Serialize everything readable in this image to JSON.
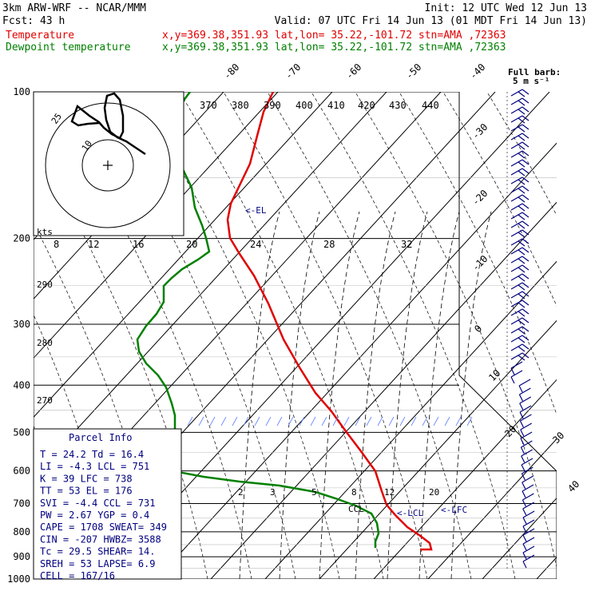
{
  "header": {
    "model": "3km ARW-WRF -- NCAR/MMM",
    "init": "Init: 12 UTC Wed 12 Jun 13",
    "fcst": "Fcst:    43 h",
    "valid": "Valid: 07 UTC Fri 14 Jun 13 (01 MDT Fri 14 Jun 13)",
    "temp_label": "Temperature",
    "dew_label": "Dewpoint temperature",
    "loc_info": "x,y=369.38,351.93   lat,lon= 35.22,-101.72  stn=AMA ,72363"
  },
  "chart_data": {
    "type": "line",
    "title": "",
    "y_ticks": [
      "100",
      "200",
      "300",
      "400",
      "500",
      "600",
      "700",
      "800",
      "900",
      "1000"
    ],
    "isotherm_labels": [
      "-80",
      "-70",
      "-60",
      "-50",
      "-40",
      "-30",
      "-20",
      "-10",
      "0",
      "10",
      "20",
      "30",
      "40"
    ],
    "theta_labels": [
      "370",
      "380",
      "390",
      "400",
      "410",
      "420",
      "430",
      "440"
    ],
    "mixing_ratio_labels_upper": [
      "8",
      "12",
      "16",
      "20",
      "24",
      "28",
      "32"
    ],
    "mixing_ratio_labels_lower": [
      "2",
      "3",
      "5",
      "8",
      "12",
      "20"
    ],
    "left_theta_labels": [
      "290",
      "280",
      "270"
    ],
    "kts_label": "kts",
    "full_barb_label": "Full barb:",
    "full_barb_value": "5 m s⁻¹",
    "hodograph_rings": [
      "25",
      "10"
    ],
    "series": [
      {
        "name": "Temperature",
        "color": "#e00000"
      },
      {
        "name": "Dewpoint temperature",
        "color": "#008000"
      }
    ],
    "annotations": [
      "<-EL",
      "CCL",
      "<-LCL",
      "<-LFC"
    ],
    "parcel_info": {
      "title": "Parcel Info",
      "rows": [
        "T  =   24.2  Td =  16.4",
        "LI =   -4.3  LCL =  751",
        "K  =     39  LFC =  738",
        "TT =     53  EL  =  176",
        "SVI =  -4.4  CCL =  731",
        "PW =   2.67  YGP =  0.4",
        "CAPE =  1708  SWEAT= 349",
        "CIN =  -207  HWBZ= 3588",
        "Tc =   29.5  SHEAR= 14.",
        "SREH =   53  LAPSE= 6.9",
        "CELL = 167/16"
      ]
    }
  }
}
